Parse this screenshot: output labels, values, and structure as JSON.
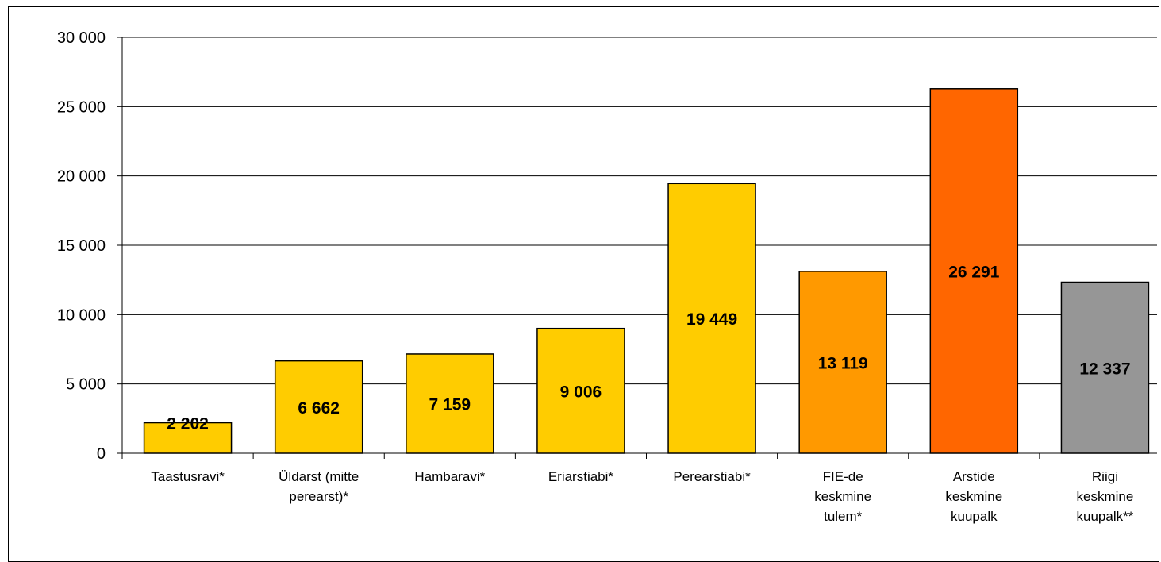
{
  "chart_data": {
    "type": "bar",
    "categories": [
      [
        "Taastusravi*"
      ],
      [
        "Üldarst (mitte",
        "perearst)*"
      ],
      [
        "Hambaravi*"
      ],
      [
        "Eriarstiabi*"
      ],
      [
        "Perearstiabi*"
      ],
      [
        "FIE-de",
        "keskmine",
        "tulem*"
      ],
      [
        "Arstide",
        "keskmine",
        "kuupalk"
      ],
      [
        "Riigi",
        "keskmine",
        "kuupalk**"
      ]
    ],
    "values": [
      2202,
      6662,
      7159,
      9006,
      19449,
      13119,
      26291,
      12337
    ],
    "value_labels": [
      "2 202",
      "6 662",
      "7 159",
      "9 006",
      "19 449",
      "13 119",
      "26 291",
      "12 337"
    ],
    "bar_colors": [
      "#FFCC00",
      "#FFCC00",
      "#FFCC00",
      "#FFCC00",
      "#FFCC00",
      "#FF9900",
      "#FF6600",
      "#969696"
    ],
    "ylim": [
      0,
      30000
    ],
    "yticks": [
      0,
      5000,
      10000,
      15000,
      20000,
      25000,
      30000
    ],
    "ytick_labels": [
      "0",
      "5 000",
      "10 000",
      "15 000",
      "20 000",
      "25 000",
      "30 000"
    ],
    "grid": true,
    "title": "",
    "xlabel": "",
    "ylabel": ""
  }
}
